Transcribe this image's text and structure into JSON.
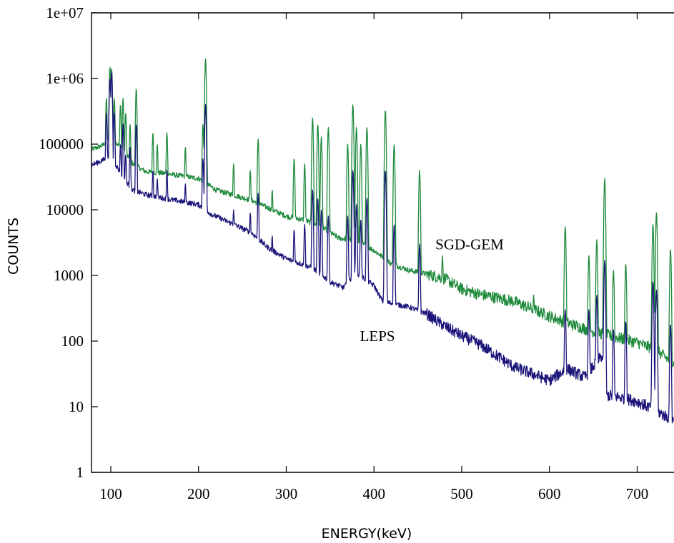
{
  "chart_data": {
    "type": "line",
    "xlabel": "ENERGY(keV)",
    "ylabel": "COUNTS",
    "xlim": [
      78,
      742
    ],
    "ylim": [
      1,
      10000000
    ],
    "y_scale": "log",
    "grid": false,
    "x_ticks": [
      100,
      200,
      300,
      400,
      500,
      600,
      700
    ],
    "y_ticks": [
      1,
      10,
      100,
      1000,
      10000,
      100000,
      1000000,
      10000000
    ],
    "y_tick_labels": [
      "1",
      "10",
      "100",
      "1000",
      "10000",
      "100000",
      "1e+06",
      "1e+07"
    ],
    "x_tick_labels": [
      "100",
      "200",
      "300",
      "400",
      "500",
      "600",
      "700"
    ],
    "annotations": [
      {
        "text": "SGD-GEM",
        "x": 470,
        "y": 2500
      },
      {
        "text": "LEPS",
        "x": 384,
        "y": 100
      }
    ],
    "series": [
      {
        "name": "SGD-GEM",
        "color": "#1f8a3c",
        "baseline": [
          [
            78,
            82000
          ],
          [
            90,
            95000
          ],
          [
            98,
            120000
          ],
          [
            105,
            110000
          ],
          [
            115,
            80000
          ],
          [
            125,
            50000
          ],
          [
            140,
            38000
          ],
          [
            160,
            36000
          ],
          [
            200,
            30000
          ],
          [
            220,
            20000
          ],
          [
            260,
            14000
          ],
          [
            300,
            8000
          ],
          [
            320,
            7000
          ],
          [
            340,
            5500
          ],
          [
            360,
            3700
          ],
          [
            380,
            3400
          ],
          [
            400,
            2400
          ],
          [
            420,
            1500
          ],
          [
            440,
            1200
          ],
          [
            460,
            1050
          ],
          [
            480,
            900
          ],
          [
            500,
            620
          ],
          [
            520,
            520
          ],
          [
            560,
            400
          ],
          [
            580,
            310
          ],
          [
            600,
            240
          ],
          [
            620,
            190
          ],
          [
            650,
            140
          ],
          [
            680,
            110
          ],
          [
            700,
            95
          ],
          [
            720,
            75
          ],
          [
            742,
            45
          ]
        ],
        "peaks": [
          [
            95,
            500000
          ],
          [
            99,
            1500000
          ],
          [
            101,
            1400000
          ],
          [
            104,
            500000
          ],
          [
            111,
            400000
          ],
          [
            114,
            500000
          ],
          [
            117,
            300000
          ],
          [
            122,
            200000
          ],
          [
            129,
            700000
          ],
          [
            148,
            150000
          ],
          [
            153,
            100000
          ],
          [
            164,
            150000
          ],
          [
            185,
            90000
          ],
          [
            205,
            200000
          ],
          [
            208,
            2000000
          ],
          [
            240,
            50000
          ],
          [
            259,
            40000
          ],
          [
            268,
            120000
          ],
          [
            284,
            20000
          ],
          [
            309,
            60000
          ],
          [
            321,
            50000
          ],
          [
            330,
            250000
          ],
          [
            336,
            200000
          ],
          [
            340,
            130000
          ],
          [
            348,
            180000
          ],
          [
            370,
            100000
          ],
          [
            376,
            400000
          ],
          [
            380,
            180000
          ],
          [
            385,
            100000
          ],
          [
            392,
            180000
          ],
          [
            413,
            330000
          ],
          [
            423,
            100000
          ],
          [
            452,
            40000
          ],
          [
            478,
            2000
          ],
          [
            582,
            500
          ],
          [
            618,
            5500
          ],
          [
            645,
            2000
          ],
          [
            654,
            3500
          ],
          [
            663,
            30000
          ],
          [
            673,
            1200
          ],
          [
            687,
            1500
          ],
          [
            718,
            6000
          ],
          [
            722,
            9000
          ],
          [
            738,
            2500
          ]
        ]
      },
      {
        "name": "LEPS",
        "color": "#1b157a",
        "baseline": [
          [
            78,
            48000
          ],
          [
            90,
            56000
          ],
          [
            98,
            65000
          ],
          [
            105,
            50000
          ],
          [
            115,
            30000
          ],
          [
            125,
            20000
          ],
          [
            140,
            17000
          ],
          [
            160,
            15000
          ],
          [
            200,
            12000
          ],
          [
            215,
            8500
          ],
          [
            240,
            6000
          ],
          [
            260,
            4500
          ],
          [
            280,
            2600
          ],
          [
            300,
            1800
          ],
          [
            330,
            1300
          ],
          [
            350,
            800
          ],
          [
            365,
            650
          ],
          [
            380,
            1100
          ],
          [
            400,
            700
          ],
          [
            410,
            400
          ],
          [
            440,
            330
          ],
          [
            460,
            260
          ],
          [
            480,
            170
          ],
          [
            500,
            120
          ],
          [
            520,
            90
          ],
          [
            540,
            60
          ],
          [
            560,
            40
          ],
          [
            580,
            32
          ],
          [
            600,
            25
          ],
          [
            620,
            38
          ],
          [
            640,
            28
          ],
          [
            660,
            60
          ],
          [
            665,
            15
          ],
          [
            680,
            14
          ],
          [
            700,
            12
          ],
          [
            720,
            9
          ],
          [
            742,
            6
          ]
        ],
        "peaks": [
          [
            95,
            300000
          ],
          [
            99,
            1000000
          ],
          [
            101,
            1300000
          ],
          [
            104,
            300000
          ],
          [
            111,
            100000
          ],
          [
            114,
            200000
          ],
          [
            117,
            70000
          ],
          [
            122,
            90000
          ],
          [
            129,
            200000
          ],
          [
            148,
            40000
          ],
          [
            153,
            30000
          ],
          [
            164,
            40000
          ],
          [
            185,
            25000
          ],
          [
            205,
            60000
          ],
          [
            208,
            400000
          ],
          [
            240,
            10000
          ],
          [
            259,
            9000
          ],
          [
            268,
            18000
          ],
          [
            284,
            4000
          ],
          [
            309,
            5000
          ],
          [
            321,
            6000
          ],
          [
            330,
            20000
          ],
          [
            336,
            15000
          ],
          [
            340,
            10000
          ],
          [
            348,
            8000
          ],
          [
            370,
            8000
          ],
          [
            376,
            40000
          ],
          [
            380,
            12000
          ],
          [
            385,
            7000
          ],
          [
            392,
            15000
          ],
          [
            413,
            40000
          ],
          [
            423,
            6000
          ],
          [
            452,
            3000
          ],
          [
            618,
            300
          ],
          [
            645,
            300
          ],
          [
            654,
            500
          ],
          [
            663,
            1700
          ],
          [
            673,
            150
          ],
          [
            687,
            200
          ],
          [
            718,
            800
          ],
          [
            722,
            600
          ],
          [
            738,
            180
          ]
        ]
      }
    ]
  }
}
